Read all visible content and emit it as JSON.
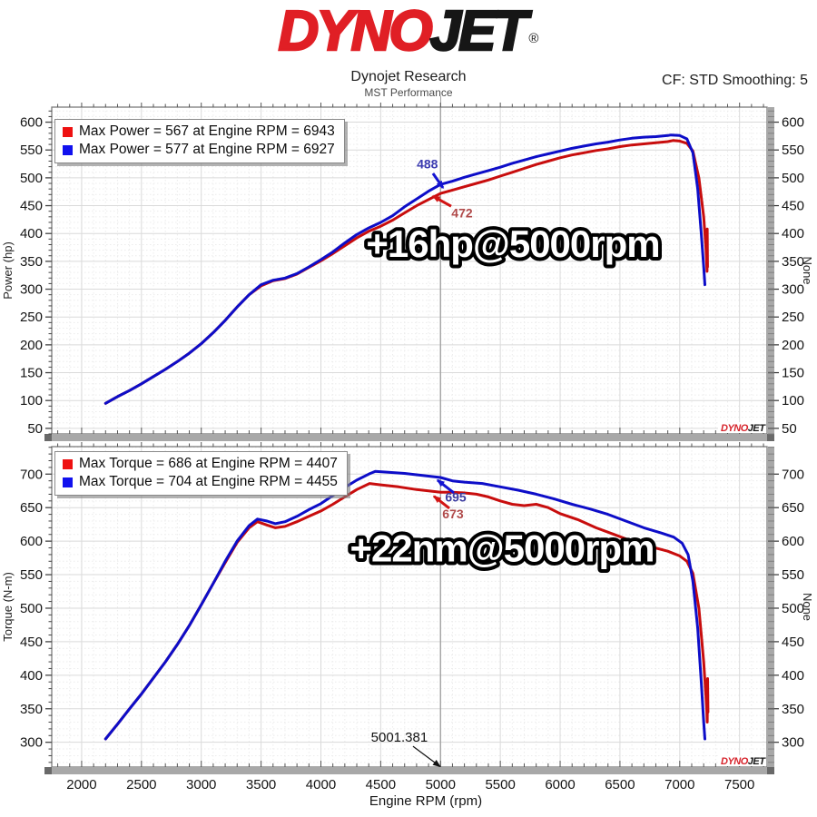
{
  "header": {
    "logo_dyno": "DYNO",
    "logo_jet": "JET",
    "logo_reg": "®",
    "title": "Dynojet Research",
    "subtitle": "MST Performance",
    "cf_label": "CF: STD Smoothing: 5"
  },
  "colors": {
    "curve_red": "#c80d0d",
    "curve_blue": "#0d0dc8",
    "grid_major": "#dadada",
    "grid_minor": "#ececec",
    "plot_border": "#7b7b7b",
    "axis_bar": "#a8a8a8",
    "cursor": "#a3a3a3"
  },
  "watermark": {
    "dyno": "DYNO",
    "jet": "JET"
  },
  "chart_data": [
    {
      "type": "line",
      "ylabel": "Power (hp)",
      "ylabel_right": "None",
      "xlabel": "",
      "xlim": [
        1750,
        7730
      ],
      "ylim": [
        40,
        627
      ],
      "yticks": [
        600,
        550,
        500,
        450,
        400,
        350,
        300,
        250,
        200,
        150,
        100,
        50
      ],
      "xticks": [
        2000,
        2500,
        3000,
        3500,
        4000,
        4500,
        5000,
        5500,
        6000,
        6500,
        7000,
        7500
      ],
      "cursor_rpm": 5000,
      "grid": true,
      "legend_position": "top-left",
      "legend": [
        {
          "label": "Max Power = 567 at Engine RPM = 6943",
          "color": "#ee1111"
        },
        {
          "label": "Max Power = 577 at Engine RPM = 6927",
          "color": "#1111ee"
        }
      ],
      "big_label": {
        "text": "+16hp@5000rpm",
        "at": [
          5605,
          376
        ]
      },
      "callouts": [
        {
          "text": "488",
          "color": "#3b3bb0",
          "arrow_color": "#1414d2",
          "fw": "bold",
          "fs": 14,
          "lw": 3,
          "text_at": [
            4890,
            523
          ],
          "from": [
            4937,
            508
          ],
          "to": [
            5021,
            482
          ]
        },
        {
          "text": "472",
          "color": "#b04a4a",
          "arrow_color": "#d21414",
          "fw": "bold",
          "fs": 14,
          "lw": 3,
          "text_at": [
            5180,
            435
          ],
          "from": [
            5089,
            449
          ],
          "to": [
            4937,
            467
          ]
        }
      ],
      "series": [
        {
          "name": "baseline-power",
          "color": "#c80d0d",
          "max_label": "Max Power = 567 at Engine RPM = 6943",
          "points": [
            [
              2200,
              95
            ],
            [
              2300,
              107
            ],
            [
              2400,
              118
            ],
            [
              2500,
              130
            ],
            [
              2600,
              143
            ],
            [
              2700,
              156
            ],
            [
              2800,
              170
            ],
            [
              2900,
              185
            ],
            [
              3000,
              202
            ],
            [
              3100,
              222
            ],
            [
              3200,
              244
            ],
            [
              3300,
              268
            ],
            [
              3400,
              290
            ],
            [
              3500,
              306
            ],
            [
              3600,
              315
            ],
            [
              3700,
              319
            ],
            [
              3800,
              327
            ],
            [
              3900,
              339
            ],
            [
              4000,
              351
            ],
            [
              4100,
              364
            ],
            [
              4200,
              378
            ],
            [
              4300,
              392
            ],
            [
              4400,
              404
            ],
            [
              4500,
              413
            ],
            [
              4600,
              424
            ],
            [
              4700,
              437
            ],
            [
              4800,
              450
            ],
            [
              4900,
              461
            ],
            [
              5000,
              472
            ],
            [
              5100,
              478
            ],
            [
              5200,
              484
            ],
            [
              5300,
              490
            ],
            [
              5400,
              496
            ],
            [
              5500,
              503
            ],
            [
              5600,
              510
            ],
            [
              5700,
              517
            ],
            [
              5800,
              524
            ],
            [
              5900,
              530
            ],
            [
              6000,
              536
            ],
            [
              6100,
              541
            ],
            [
              6200,
              545
            ],
            [
              6300,
              549
            ],
            [
              6400,
              552
            ],
            [
              6500,
              556
            ],
            [
              6600,
              559
            ],
            [
              6700,
              561
            ],
            [
              6800,
              563
            ],
            [
              6900,
              565
            ],
            [
              6943,
              567
            ],
            [
              7000,
              566
            ],
            [
              7060,
              562
            ],
            [
              7110,
              548
            ],
            [
              7160,
              500
            ],
            [
              7200,
              430
            ],
            [
              7220,
              370
            ],
            [
              7228,
              332
            ],
            [
              7230,
              408
            ],
            [
              7232,
              340
            ]
          ]
        },
        {
          "name": "tuned-power",
          "color": "#0d0dc8",
          "max_label": "Max Power = 577 at Engine RPM = 6927",
          "points": [
            [
              2200,
              95
            ],
            [
              2300,
              107
            ],
            [
              2400,
              118
            ],
            [
              2500,
              130
            ],
            [
              2600,
              143
            ],
            [
              2700,
              156
            ],
            [
              2800,
              170
            ],
            [
              2900,
              185
            ],
            [
              3000,
              202
            ],
            [
              3100,
              222
            ],
            [
              3200,
              244
            ],
            [
              3300,
              268
            ],
            [
              3400,
              290
            ],
            [
              3500,
              308
            ],
            [
              3600,
              316
            ],
            [
              3700,
              320
            ],
            [
              3800,
              328
            ],
            [
              3900,
              340
            ],
            [
              4000,
              353
            ],
            [
              4100,
              367
            ],
            [
              4200,
              383
            ],
            [
              4300,
              398
            ],
            [
              4400,
              410
            ],
            [
              4500,
              420
            ],
            [
              4600,
              432
            ],
            [
              4700,
              448
            ],
            [
              4800,
              462
            ],
            [
              4900,
              476
            ],
            [
              5000,
              488
            ],
            [
              5100,
              494
            ],
            [
              5200,
              501
            ],
            [
              5300,
              507
            ],
            [
              5400,
              513
            ],
            [
              5500,
              519
            ],
            [
              5600,
              526
            ],
            [
              5700,
              532
            ],
            [
              5800,
              538
            ],
            [
              5900,
              543
            ],
            [
              6000,
              548
            ],
            [
              6100,
              553
            ],
            [
              6200,
              557
            ],
            [
              6300,
              561
            ],
            [
              6400,
              564
            ],
            [
              6500,
              568
            ],
            [
              6600,
              571
            ],
            [
              6700,
              573
            ],
            [
              6800,
              574
            ],
            [
              6900,
              576
            ],
            [
              6927,
              577
            ],
            [
              7000,
              576
            ],
            [
              7060,
              570
            ],
            [
              7110,
              545
            ],
            [
              7150,
              480
            ],
            [
              7180,
              400
            ],
            [
              7200,
              340
            ],
            [
              7210,
              308
            ]
          ]
        }
      ]
    },
    {
      "type": "line",
      "ylabel": "Torque (N-m)",
      "ylabel_right": "None",
      "xlabel": "Engine RPM (rpm)",
      "xlim": [
        1750,
        7730
      ],
      "ylim": [
        263,
        741
      ],
      "yticks": [
        700,
        650,
        600,
        550,
        500,
        450,
        400,
        350,
        300
      ],
      "xticks": [
        2000,
        2500,
        3000,
        3500,
        4000,
        4500,
        5000,
        5500,
        6000,
        6500,
        7000,
        7500
      ],
      "cursor_rpm": 5000,
      "grid": true,
      "legend_position": "top-left",
      "legend": [
        {
          "label": "Max Torque = 686 at Engine RPM = 4407",
          "color": "#ee1111"
        },
        {
          "label": "Max Torque = 704 at Engine RPM = 4455",
          "color": "#1111ee"
        }
      ],
      "big_label": {
        "text": "+22nm@5000rpm",
        "at": [
          5514,
          585
        ]
      },
      "callouts": [
        {
          "text": "695",
          "color": "#3d3da0",
          "arrow_color": "#1414d2",
          "fw": "bold",
          "fs": 14,
          "lw": 3,
          "text_at": [
            5127,
            664
          ],
          "from": [
            5112,
            672
          ],
          "to": [
            4975,
            691
          ]
        },
        {
          "text": "673",
          "color": "#b04a4a",
          "arrow_color": "#d21414",
          "fw": "bold",
          "fs": 14,
          "lw": 3,
          "text_at": [
            5104,
            639
          ],
          "from": [
            5074,
            649
          ],
          "to": [
            4945,
            667
          ]
        },
        {
          "text": "5001.381",
          "color": "#111111",
          "arrow_color": "#111111",
          "fw": "normal",
          "fs": 15,
          "lw": 1.2,
          "text_at": [
            4656,
            306
          ],
          "from": [
            4770,
            294
          ],
          "to": [
            4995,
            264
          ]
        }
      ],
      "series": [
        {
          "name": "baseline-torque",
          "color": "#c80d0d",
          "max_label": "Max Torque = 686 at Engine RPM = 4407",
          "points": [
            [
              2200,
              305
            ],
            [
              2300,
              327
            ],
            [
              2400,
              350
            ],
            [
              2500,
              372
            ],
            [
              2600,
              396
            ],
            [
              2700,
              420
            ],
            [
              2800,
              446
            ],
            [
              2900,
              474
            ],
            [
              3000,
              505
            ],
            [
              3100,
              537
            ],
            [
              3200,
              568
            ],
            [
              3300,
              598
            ],
            [
              3400,
              620
            ],
            [
              3470,
              629
            ],
            [
              3550,
              624
            ],
            [
              3620,
              620
            ],
            [
              3700,
              622
            ],
            [
              3800,
              629
            ],
            [
              3900,
              637
            ],
            [
              4000,
              645
            ],
            [
              4100,
              655
            ],
            [
              4200,
              666
            ],
            [
              4300,
              677
            ],
            [
              4407,
              686
            ],
            [
              4500,
              684
            ],
            [
              4650,
              681
            ],
            [
              4800,
              677
            ],
            [
              5000,
              673
            ],
            [
              5100,
              673
            ],
            [
              5200,
              672
            ],
            [
              5300,
              670
            ],
            [
              5400,
              666
            ],
            [
              5500,
              660
            ],
            [
              5600,
              655
            ],
            [
              5700,
              653
            ],
            [
              5800,
              655
            ],
            [
              5900,
              650
            ],
            [
              6000,
              641
            ],
            [
              6150,
              632
            ],
            [
              6300,
              620
            ],
            [
              6450,
              610
            ],
            [
              6600,
              600
            ],
            [
              6750,
              592
            ],
            [
              6900,
              585
            ],
            [
              7000,
              578
            ],
            [
              7060,
              570
            ],
            [
              7110,
              552
            ],
            [
              7160,
              500
            ],
            [
              7200,
              420
            ],
            [
              7225,
              350
            ],
            [
              7230,
              330
            ],
            [
              7233,
              395
            ],
            [
              7236,
              345
            ]
          ]
        },
        {
          "name": "tuned-torque",
          "color": "#0d0dc8",
          "max_label": "Max Torque = 704 at Engine RPM = 4455",
          "points": [
            [
              2200,
              305
            ],
            [
              2300,
              327
            ],
            [
              2400,
              350
            ],
            [
              2500,
              372
            ],
            [
              2600,
              396
            ],
            [
              2700,
              420
            ],
            [
              2800,
              446
            ],
            [
              2900,
              474
            ],
            [
              3000,
              505
            ],
            [
              3100,
              537
            ],
            [
              3200,
              570
            ],
            [
              3300,
              600
            ],
            [
              3400,
              623
            ],
            [
              3470,
              633
            ],
            [
              3550,
              630
            ],
            [
              3620,
              626
            ],
            [
              3700,
              629
            ],
            [
              3800,
              637
            ],
            [
              3900,
              647
            ],
            [
              4000,
              656
            ],
            [
              4100,
              668
            ],
            [
              4200,
              680
            ],
            [
              4300,
              691
            ],
            [
              4400,
              700
            ],
            [
              4455,
              704
            ],
            [
              4550,
              703
            ],
            [
              4700,
              701
            ],
            [
              4850,
              698
            ],
            [
              5000,
              695
            ],
            [
              5100,
              690
            ],
            [
              5200,
              688
            ],
            [
              5350,
              686
            ],
            [
              5500,
              681
            ],
            [
              5650,
              676
            ],
            [
              5800,
              670
            ],
            [
              5950,
              663
            ],
            [
              6100,
              655
            ],
            [
              6250,
              648
            ],
            [
              6400,
              640
            ],
            [
              6550,
              630
            ],
            [
              6700,
              620
            ],
            [
              6850,
              612
            ],
            [
              6950,
              606
            ],
            [
              7020,
              597
            ],
            [
              7070,
              580
            ],
            [
              7110,
              540
            ],
            [
              7150,
              470
            ],
            [
              7180,
              390
            ],
            [
              7200,
              330
            ],
            [
              7210,
              305
            ]
          ]
        }
      ]
    }
  ]
}
